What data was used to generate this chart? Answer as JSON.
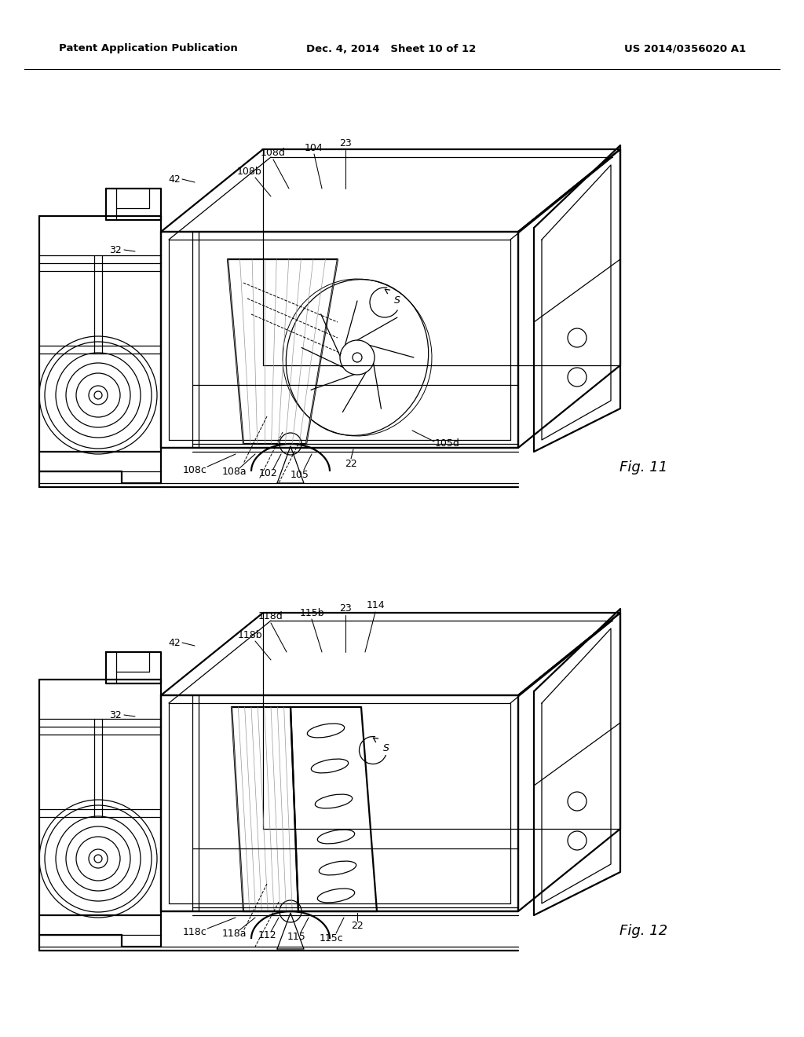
{
  "header_left": "Patent Application Publication",
  "header_center": "Dec. 4, 2014   Sheet 10 of 12",
  "header_right": "US 2014/0356020 A1",
  "fig11_label": "Fig. 11",
  "fig12_label": "Fig. 12",
  "bg": "#ffffff",
  "black": "#000000",
  "gray": "#aaaaaa",
  "lw_main": 1.6,
  "lw_thin": 0.9,
  "lw_leader": 0.75,
  "fs_label": 9,
  "fs_fig": 13,
  "fs_header": 9.5
}
